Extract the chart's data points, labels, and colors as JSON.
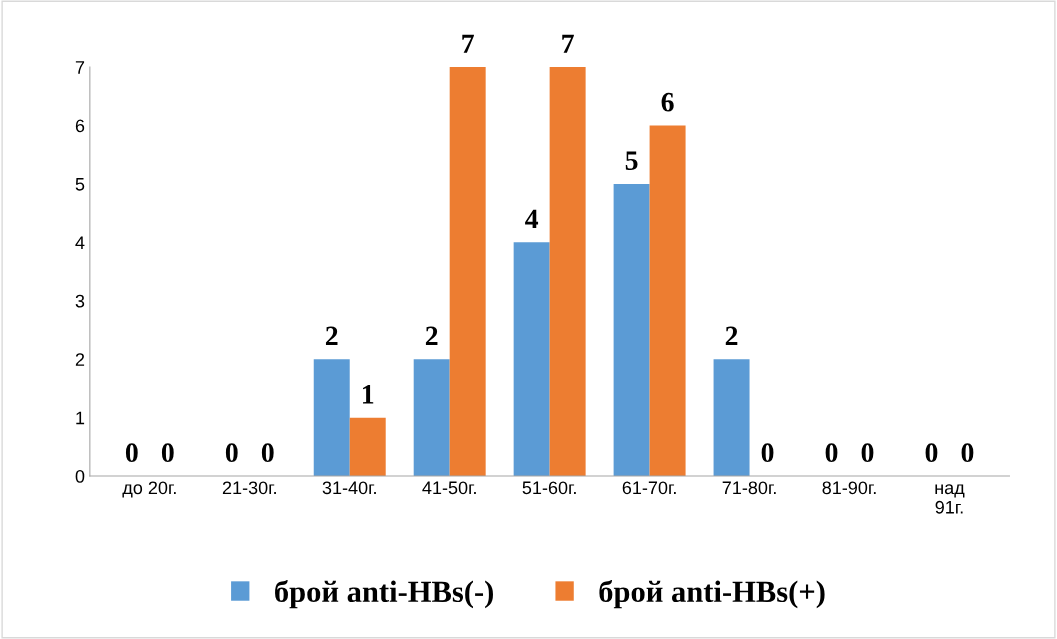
{
  "chart_data": {
    "type": "bar",
    "categories": [
      "до 20г.",
      "21-30г.",
      "31-40г.",
      "41-50г.",
      "51-60г.",
      "61-70г.",
      "71-80г.",
      "81-90г.",
      "над\n91г."
    ],
    "series": [
      {
        "name": "брой anti-HBs(-)",
        "color": "#5b9bd5",
        "values": [
          0,
          0,
          2,
          2,
          4,
          5,
          2,
          0,
          0
        ]
      },
      {
        "name": "брой anti-HBs(+)",
        "color": "#ed7d31",
        "values": [
          0,
          0,
          1,
          7,
          7,
          6,
          0,
          0,
          0
        ]
      }
    ],
    "ylim": [
      0,
      7
    ],
    "yticks": [
      0,
      1,
      2,
      3,
      4,
      5,
      6,
      7
    ],
    "data_labels": true,
    "grid": false,
    "legend": "bottom"
  }
}
